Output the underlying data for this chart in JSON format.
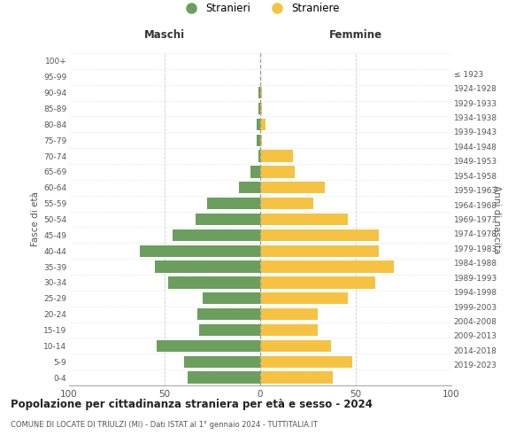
{
  "age_groups": [
    "0-4",
    "5-9",
    "10-14",
    "15-19",
    "20-24",
    "25-29",
    "30-34",
    "35-39",
    "40-44",
    "45-49",
    "50-54",
    "55-59",
    "60-64",
    "65-69",
    "70-74",
    "75-79",
    "80-84",
    "85-89",
    "90-94",
    "95-99",
    "100+"
  ],
  "birth_years": [
    "2019-2023",
    "2014-2018",
    "2009-2013",
    "2004-2008",
    "1999-2003",
    "1994-1998",
    "1989-1993",
    "1984-1988",
    "1979-1983",
    "1974-1978",
    "1969-1973",
    "1964-1968",
    "1959-1963",
    "1954-1958",
    "1949-1953",
    "1944-1948",
    "1939-1943",
    "1934-1938",
    "1929-1933",
    "1924-1928",
    "≤ 1923"
  ],
  "maschi": [
    38,
    40,
    54,
    32,
    33,
    30,
    48,
    55,
    63,
    46,
    34,
    28,
    11,
    5,
    1,
    2,
    2,
    1,
    1,
    0,
    0
  ],
  "femmine": [
    38,
    48,
    37,
    30,
    30,
    46,
    60,
    70,
    62,
    62,
    46,
    28,
    34,
    18,
    17,
    1,
    3,
    1,
    1,
    0,
    0
  ],
  "maschi_color": "#6a9f5e",
  "femmine_color": "#f5c242",
  "title": "Popolazione per cittadinanza straniera per età e sesso - 2024",
  "subtitle": "COMUNE DI LOCATE DI TRIULZI (MI) - Dati ISTAT al 1° gennaio 2024 - TUTTITALIA.IT",
  "xlabel_left": "Maschi",
  "xlabel_right": "Femmine",
  "ylabel_left": "Fasce di età",
  "ylabel_right": "Anni di nascita",
  "legend_maschi": "Stranieri",
  "legend_femmine": "Straniere",
  "xlim": 100,
  "bg_color": "#ffffff",
  "grid_color": "#cccccc"
}
